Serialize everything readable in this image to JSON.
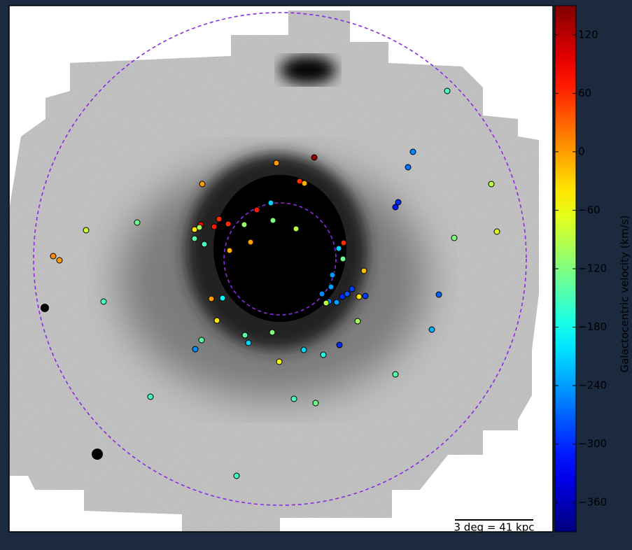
{
  "chart_data": {
    "type": "scatter",
    "colormap": "jet",
    "colorbar_label": "Galactocentric velocity (km/s)",
    "annotation": "3 deg = 41 kpc",
    "clim": [
      -390,
      150
    ],
    "cticks": [
      {
        "value": -360,
        "label": "−360"
      },
      {
        "value": -300,
        "label": "−300"
      },
      {
        "value": -240,
        "label": "−240"
      },
      {
        "value": -180,
        "label": "−180"
      },
      {
        "value": -120,
        "label": "−120"
      },
      {
        "value": -60,
        "label": "−60"
      },
      0,
      60,
      120
    ],
    "values": [
      -150,
      140,
      0,
      -250,
      -260,
      0,
      60,
      -10,
      -90,
      -300,
      -310,
      -210,
      70,
      -130,
      -80,
      60,
      60,
      80,
      70,
      -40,
      -100,
      -120,
      -110,
      -90,
      -70,
      -140,
      -150,
      0,
      -120,
      60,
      -210,
      -10,
      10,
      0,
      -130,
      -20,
      -240,
      -150,
      -240,
      -250,
      -290,
      -280,
      -300,
      -290,
      -40,
      -270,
      0,
      -190,
      -250,
      -90,
      -240,
      -40,
      -100,
      -230,
      -120,
      -140,
      -140,
      -210,
      -250,
      -300,
      -210,
      -170,
      -60,
      -140,
      -150,
      -150,
      -130,
      -160
    ]
  }
}
